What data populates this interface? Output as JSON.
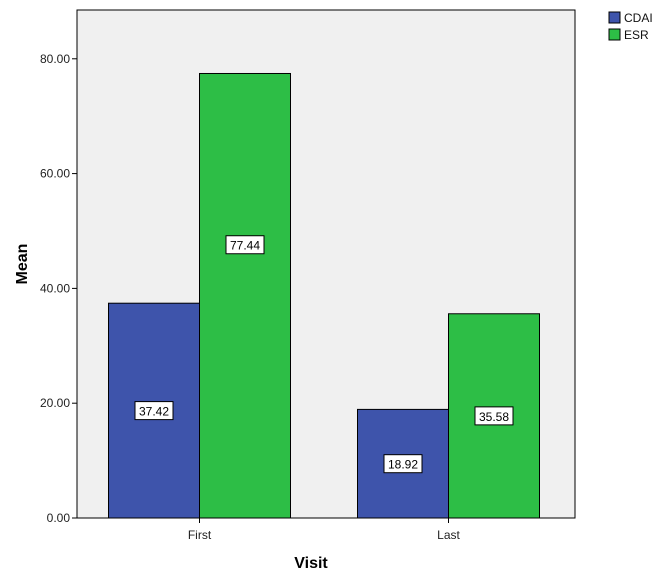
{
  "chart_data": {
    "type": "bar",
    "categories": [
      "First",
      "Last"
    ],
    "series": [
      {
        "name": "CDAI",
        "values": [
          37.42,
          18.92
        ],
        "color": "#3E54AB",
        "labels": [
          "37.42",
          "18.92"
        ]
      },
      {
        "name": "ESR",
        "values": [
          77.44,
          35.58
        ],
        "color": "#2DBE46",
        "labels": [
          "77.44",
          "35.58"
        ]
      }
    ],
    "xlabel": "Visit",
    "ylabel": "Mean",
    "ylim": [
      0,
      88.5
    ],
    "yticks": [
      0,
      20,
      40,
      60,
      80
    ],
    "ytick_labels": [
      "0.00",
      "20.00",
      "40.00",
      "60.00",
      "80.00"
    ],
    "grid": false,
    "plot_background": "#F0F0F0",
    "legend_position": "top-right"
  }
}
